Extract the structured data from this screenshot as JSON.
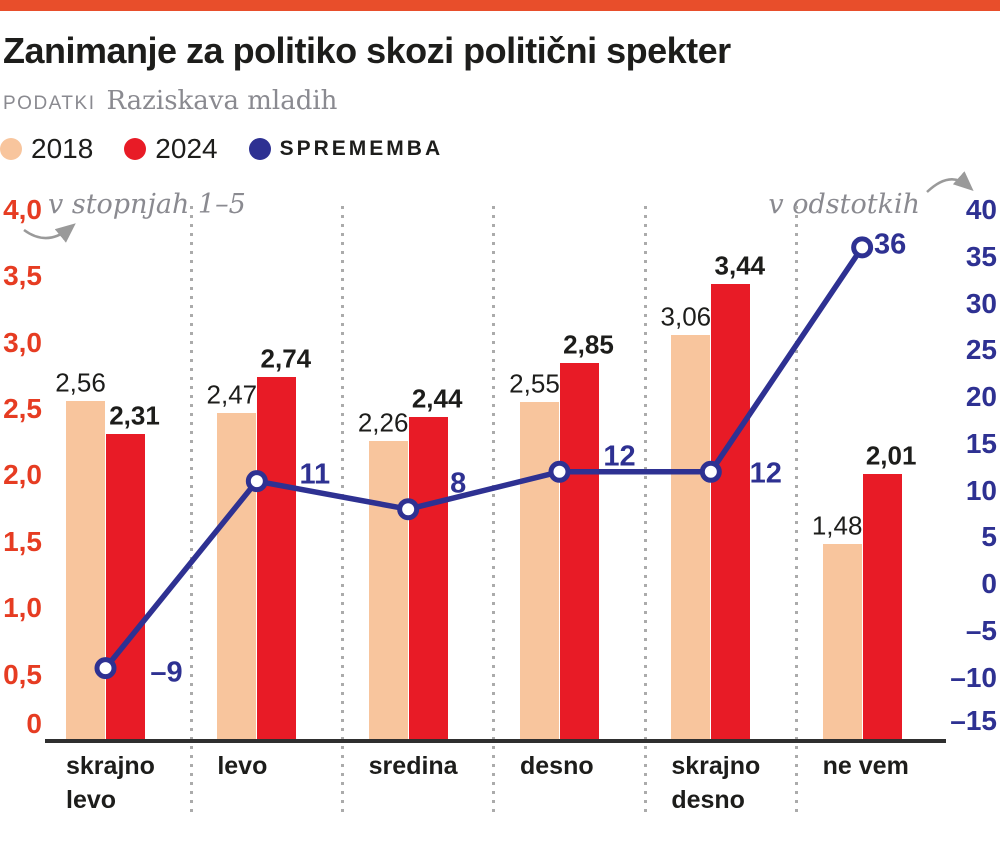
{
  "header": {
    "kicker": "PODATKI",
    "source": "Raziskava mladih"
  },
  "legend": {
    "items": [
      {
        "label": "2018",
        "color": "#F8C59D"
      },
      {
        "label": "2024",
        "color": "#E81B26"
      },
      {
        "label": "SPREMEMBA",
        "color": "#2E3192"
      }
    ]
  },
  "chart_data": {
    "type": "combo-bar-line",
    "title": "Zanimanje za politiko skozi politični spekter",
    "left_axis": {
      "label": "v stopnjah 1–5",
      "tick_labels": [
        "4,0",
        "3,5",
        "3,0",
        "2,5",
        "2,0",
        "1,5",
        "1,0",
        "0,5",
        "0"
      ],
      "tick_values": [
        4,
        3.5,
        3,
        2.5,
        2,
        1.5,
        1,
        0.5,
        0
      ],
      "range": [
        0,
        4
      ]
    },
    "right_axis": {
      "label": "v odstotkih",
      "tick_labels": [
        "40",
        "35",
        "30",
        "25",
        "20",
        "15",
        "10",
        "5",
        "0",
        "–5",
        "–10",
        "–15"
      ],
      "tick_values": [
        40,
        35,
        30,
        25,
        20,
        15,
        10,
        5,
        0,
        -5,
        -10,
        -15
      ],
      "range": [
        -15,
        40
      ]
    },
    "categories": [
      "skrajno levo",
      "levo",
      "sredina",
      "desno",
      "skrajno desno",
      "ne vem"
    ],
    "category_label_lines": [
      [
        "skrajno",
        "levo"
      ],
      [
        "levo"
      ],
      [
        "sredina"
      ],
      [
        "desno"
      ],
      [
        "skrajno",
        "desno"
      ],
      [
        "ne vem"
      ]
    ],
    "series": [
      {
        "name": "2018",
        "type": "bar",
        "color": "#F8C59D",
        "values": [
          2.56,
          2.47,
          2.26,
          2.55,
          3.06,
          1.48
        ],
        "value_labels": [
          "2,56",
          "2,47",
          "2,26",
          "2,55",
          "3,06",
          "1,48"
        ]
      },
      {
        "name": "2024",
        "type": "bar",
        "color": "#E81B26",
        "values": [
          2.31,
          2.74,
          2.44,
          2.85,
          3.44,
          2.01
        ],
        "value_labels": [
          "2,31",
          "2,74",
          "2,44",
          "2,85",
          "3,44",
          "2,01"
        ]
      },
      {
        "name": "SPREMEMBA",
        "type": "line",
        "color": "#2E3192",
        "values": [
          -9,
          11,
          8,
          12,
          12,
          36
        ],
        "value_labels": [
          "–9",
          "11",
          "8",
          "12",
          "12",
          "36"
        ]
      }
    ],
    "grid": "dotted-vertical-separators",
    "legend_position": "top-left"
  },
  "colors": {
    "accent_bar": "#E84E2B",
    "left_axis": "#E63C22",
    "right_axis": "#2E3192",
    "line": "#2E3192",
    "text": "#1D1D1B",
    "muted": "#8A8A90",
    "separator": "#ABABAB",
    "baseline": "#2F2F2F",
    "background": "#FFFFFF"
  }
}
